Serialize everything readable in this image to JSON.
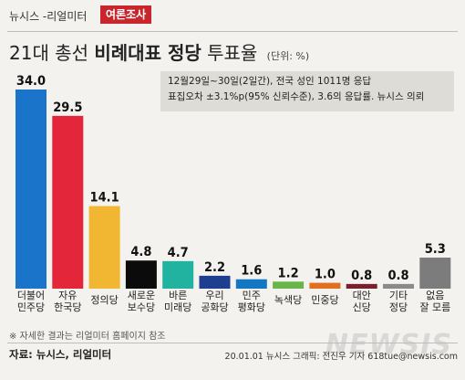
{
  "header": {
    "brand": "뉴시스 -리얼미터",
    "tag": "여론조사"
  },
  "title": {
    "part1": "21대 총선",
    "part2": "비례대표 정당",
    "part3": "투표율",
    "unit": "(단위: %)"
  },
  "note": {
    "line1": "12월29일~30일(2일간), 전국 성인 1011명 응답",
    "line2": "표집오차 ±3.1%p(95% 신뢰수준), 3.6의 응답률. 뉴시스 의뢰"
  },
  "chart_data": {
    "type": "bar",
    "categories": [
      "더불어\n민주당",
      "자유\n한국당",
      "정의당",
      "새로운\n보수당",
      "바른\n미래당",
      "우리\n공화당",
      "민주\n평화당",
      "녹색당",
      "민중당",
      "대안\n신당",
      "기타\n정당",
      "없음\n잘 모름"
    ],
    "values": [
      34.0,
      29.5,
      14.1,
      4.8,
      4.7,
      2.2,
      1.6,
      1.2,
      1.0,
      0.8,
      0.8,
      5.3
    ],
    "value_labels": [
      "34.0",
      "29.5",
      "14.1",
      "4.8",
      "4.7",
      "2.2",
      "1.6",
      "1.2",
      "1.0",
      "0.8",
      "0.8",
      "5.3"
    ],
    "colors": [
      "#1a74c9",
      "#e4263a",
      "#f1b733",
      "#0b0b0b",
      "#22b3a0",
      "#1e3f8f",
      "#1477c4",
      "#68b54a",
      "#e0701e",
      "#7c1f2c",
      "#8a8a8a",
      "#7c7c7c"
    ],
    "ylim": [
      0,
      34
    ],
    "grid": false,
    "legend": "none"
  },
  "footnote": "※ 자세한 결과는 리얼미터 홈페이지 참조",
  "footer": {
    "source": "자료: 뉴시스, 리얼미터",
    "credit": "20.01.01 뉴시스 그래픽: 전진우 기자 618tue@newsis.com"
  },
  "watermark": "NEWSIS"
}
